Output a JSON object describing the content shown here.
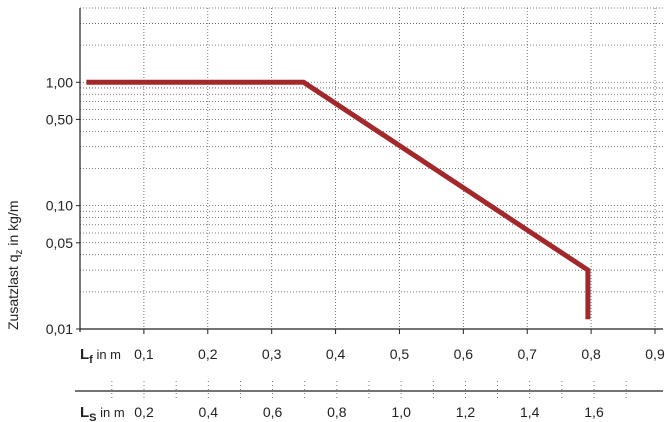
{
  "chart_data": {
    "type": "line",
    "ylabel": "Zusatzlast q",
    "ylabel_sub": "z",
    "ylabel_unit": " in kg/m",
    "y_scale": "log",
    "ylim": [
      0.01,
      4.0
    ],
    "y_ticks": [
      {
        "value": 0.01,
        "label": "0,01"
      },
      {
        "value": 0.05,
        "label": "0,05"
      },
      {
        "value": 0.1,
        "label": "0,10"
      },
      {
        "value": 0.5,
        "label": "0,50"
      },
      {
        "value": 1.0,
        "label": "1,00"
      }
    ],
    "x_axis": {
      "symbol": "L",
      "subscript": "f",
      "unit": " in m",
      "range": [
        0.0,
        0.9
      ],
      "ticks": [
        {
          "value": 0.1,
          "label": "0,1"
        },
        {
          "value": 0.2,
          "label": "0,2"
        },
        {
          "value": 0.3,
          "label": "0,3"
        },
        {
          "value": 0.4,
          "label": "0,4"
        },
        {
          "value": 0.5,
          "label": "0,5"
        },
        {
          "value": 0.6,
          "label": "0,6"
        },
        {
          "value": 0.7,
          "label": "0,7"
        },
        {
          "value": 0.8,
          "label": "0,8"
        },
        {
          "value": 0.9,
          "label": "0,9"
        }
      ]
    },
    "x2_axis": {
      "symbol": "L",
      "subscript": "S",
      "unit": " in m",
      "ticks": [
        {
          "value": 0.2,
          "label": "0,2"
        },
        {
          "value": 0.4,
          "label": "0,4"
        },
        {
          "value": 0.6,
          "label": "0,6"
        },
        {
          "value": 0.8,
          "label": "0,8"
        },
        {
          "value": 1.0,
          "label": "1,0"
        },
        {
          "value": 1.2,
          "label": "1,2"
        },
        {
          "value": 1.4,
          "label": "1,4"
        },
        {
          "value": 1.6,
          "label": "1,6"
        }
      ]
    },
    "series": [
      {
        "color": "#a3282b",
        "points": [
          {
            "x": 0.01,
            "y": 1.0
          },
          {
            "x": 0.35,
            "y": 1.0
          },
          {
            "x": 0.795,
            "y": 0.03
          },
          {
            "x": 0.795,
            "y": 0.012
          }
        ]
      }
    ],
    "grid": true
  }
}
